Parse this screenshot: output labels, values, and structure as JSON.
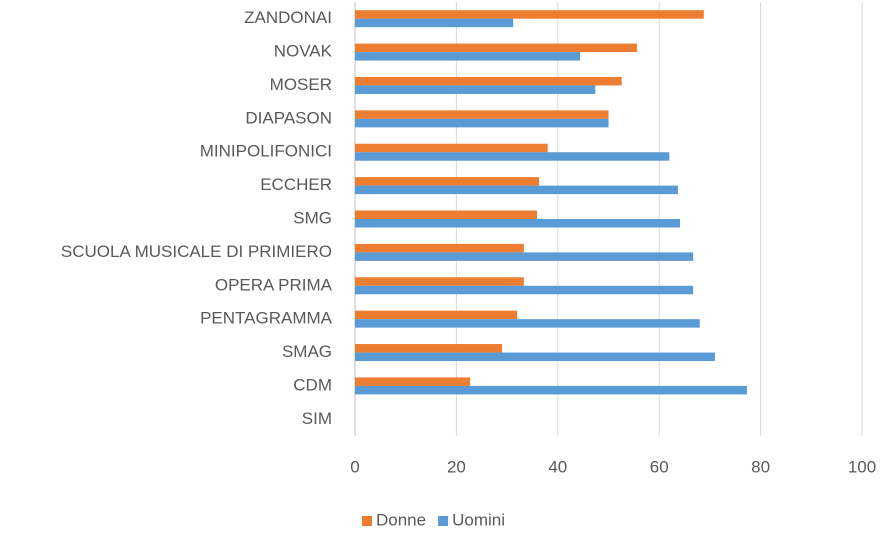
{
  "chart_data": {
    "type": "barh",
    "categories": [
      "ZANDONAI",
      "NOVAK",
      "MOSER",
      "DIAPASON",
      "MINIPOLIFONICI",
      "ECCHER",
      "SMG",
      "SCUOLA MUSICALE DI PRIMIERO",
      "OPERA PRIMA",
      "PENTAGRAMMA",
      "SMAG",
      "CDM",
      "SIM"
    ],
    "series": [
      {
        "name": "Donne",
        "color": "#ed7d31",
        "values": [
          68.8,
          55.6,
          52.6,
          50,
          38,
          36.3,
          35.9,
          33.3,
          33.3,
          32,
          29,
          22.7,
          0
        ]
      },
      {
        "name": "Uomini",
        "color": "#5b9bd5",
        "values": [
          31.2,
          44.4,
          47.4,
          50,
          62,
          63.7,
          64.1,
          66.7,
          66.7,
          68,
          71,
          77.3,
          0
        ]
      }
    ],
    "xlim": [
      0,
      100
    ],
    "xticks": [
      0,
      20,
      40,
      60,
      80,
      100
    ],
    "grid": true,
    "legend": "bottom"
  }
}
